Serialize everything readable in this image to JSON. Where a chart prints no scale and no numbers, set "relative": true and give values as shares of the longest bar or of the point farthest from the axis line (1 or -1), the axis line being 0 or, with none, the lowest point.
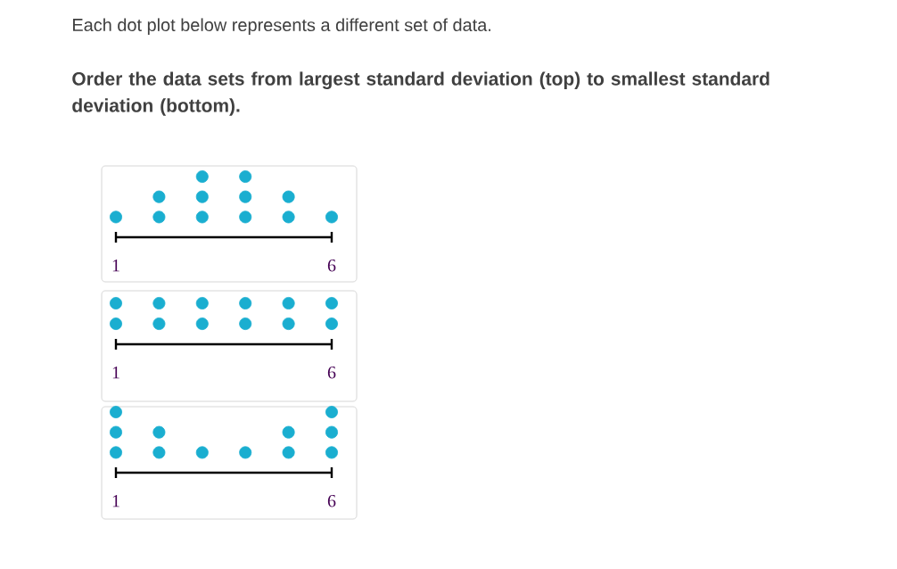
{
  "chart_data": [
    {
      "type": "scatter",
      "title": "Each dot plot below represents a different set of data.",
      "subtitle": "Order the data sets from largest standard deviation (top) to smallest standard deviation (bottom).",
      "x": [
        1,
        2,
        2,
        3,
        3,
        3,
        4,
        4,
        4,
        5,
        5,
        6
      ],
      "values": [
        0.333,
        0.333,
        0.667,
        0.333,
        0.667,
        1,
        0.333,
        0.667,
        1,
        0.333,
        0.667,
        0.333
      ],
      "relative": true,
      "color": "#1aaed0",
      "xlim": [
        1,
        6
      ],
      "xticks": [
        1,
        6
      ],
      "tick_labels": "x"
    },
    {
      "type": "scatter",
      "x": [
        1,
        1,
        2,
        2,
        3,
        3,
        4,
        4,
        5,
        5,
        6,
        6
      ],
      "values": [
        0.5,
        1,
        0.5,
        1,
        0.5,
        1,
        0.5,
        1,
        0.5,
        1,
        0.5,
        1
      ],
      "relative": true,
      "color": "#1aaed0",
      "xlim": [
        1,
        6
      ],
      "xticks": [
        1,
        6
      ],
      "tick_labels": "x"
    },
    {
      "type": "scatter",
      "x": [
        1,
        1,
        1,
        2,
        2,
        3,
        4,
        5,
        5,
        6,
        6,
        6
      ],
      "values": [
        0.333,
        0.667,
        1,
        0.333,
        0.667,
        0.333,
        0.333,
        0.333,
        0.667,
        0.333,
        0.667,
        1
      ],
      "relative": true,
      "color": "#1aaed0",
      "xlim": [
        1,
        6
      ],
      "xticks": [
        1,
        6
      ],
      "tick_labels": "x"
    }
  ]
}
